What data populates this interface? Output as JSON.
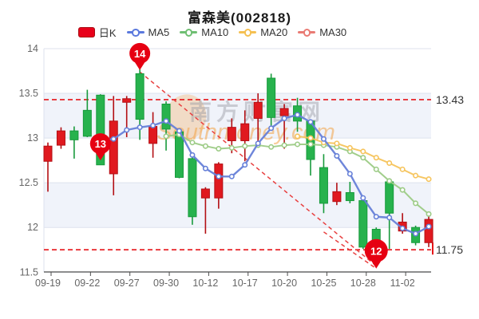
{
  "title": {
    "text": "富森美(002818)"
  },
  "legend": {
    "items": [
      {
        "label": "日K",
        "type": "rect",
        "color": "#e8001a",
        "border": "#a80a12"
      },
      {
        "label": "MA5",
        "type": "line",
        "color": "#5b79dd"
      },
      {
        "label": "MA10",
        "type": "line",
        "color": "#6fbf73"
      },
      {
        "label": "MA20",
        "type": "line",
        "color": "#f5c052"
      },
      {
        "label": "MA30",
        "type": "line",
        "color": "#e97b74"
      }
    ]
  },
  "watermark": {
    "cn": "南方财富网",
    "en": "Southmoney.com"
  },
  "reference_lines": {
    "upper": {
      "value": 13.43,
      "label": "13.43"
    },
    "lower": {
      "value": 11.75,
      "label": "11.75"
    }
  },
  "markers": [
    {
      "label": "14",
      "date": "09-28",
      "tip_value": 13.76
    },
    {
      "label": "13",
      "date": "09-23",
      "tip_value": 12.75
    },
    {
      "label": "12",
      "date": "10-31",
      "tip_value": 11.54
    }
  ],
  "chart_data": {
    "type": "candlestick",
    "title": "富森美(002818)",
    "ylim": [
      11.5,
      14
    ],
    "y_ticks": [
      14,
      13.5,
      13,
      12.5,
      12,
      11.5
    ],
    "x_tick_labels": [
      "09-19",
      "09-22",
      "09-27",
      "09-30",
      "10-12",
      "10-17",
      "10-20",
      "10-25",
      "10-28",
      "11-02"
    ],
    "dates": [
      "09-19",
      "09-20",
      "09-21",
      "09-22",
      "09-23",
      "09-26",
      "09-27",
      "09-28",
      "09-29",
      "09-30",
      "10-10",
      "10-11",
      "10-12",
      "10-13",
      "10-14",
      "10-17",
      "10-18",
      "10-19",
      "10-20",
      "10-21",
      "10-24",
      "10-25",
      "10-26",
      "10-27",
      "10-28",
      "10-31",
      "11-01",
      "11-02",
      "11-03",
      "11-04"
    ],
    "ohlc_order": [
      "open",
      "close",
      "low",
      "high"
    ],
    "ohlc": [
      [
        12.74,
        12.91,
        12.4,
        12.95
      ],
      [
        12.92,
        13.08,
        12.88,
        13.12
      ],
      [
        13.08,
        12.98,
        12.77,
        13.13
      ],
      [
        13.31,
        13.02,
        13.01,
        13.54
      ],
      [
        13.48,
        12.7,
        12.7,
        13.49
      ],
      [
        12.6,
        13.19,
        12.36,
        13.47
      ],
      [
        13.4,
        13.44,
        13.01,
        13.47
      ],
      [
        13.72,
        13.21,
        12.98,
        13.77
      ],
      [
        12.94,
        13.13,
        12.78,
        13.29
      ],
      [
        13.38,
        13.1,
        12.86,
        13.41
      ],
      [
        13.07,
        12.56,
        12.55,
        13.09
      ],
      [
        12.77,
        12.12,
        12.03,
        12.79
      ],
      [
        12.33,
        12.43,
        11.93,
        12.45
      ],
      [
        12.33,
        12.71,
        12.21,
        12.73
      ],
      [
        12.97,
        13.12,
        12.83,
        13.22
      ],
      [
        12.97,
        13.16,
        12.74,
        13.31
      ],
      [
        13.22,
        13.4,
        12.95,
        13.5
      ],
      [
        13.67,
        13.23,
        13.14,
        13.72
      ],
      [
        13.25,
        13.33,
        12.88,
        13.38
      ],
      [
        13.36,
        13.19,
        13.07,
        13.45
      ],
      [
        13.19,
        12.76,
        12.58,
        13.21
      ],
      [
        12.67,
        12.27,
        12.16,
        12.82
      ],
      [
        12.29,
        12.4,
        12.25,
        12.5
      ],
      [
        12.39,
        12.3,
        12.27,
        12.51
      ],
      [
        12.3,
        11.78,
        11.76,
        12.32
      ],
      [
        11.98,
        11.8,
        11.76,
        12.0
      ],
      [
        12.51,
        12.16,
        11.76,
        12.53
      ],
      [
        11.96,
        12.06,
        11.93,
        12.16
      ],
      [
        12.0,
        11.83,
        11.8,
        12.02
      ],
      [
        11.83,
        12.09,
        11.78,
        12.15
      ]
    ],
    "series": [
      {
        "name": "MA5",
        "color": "#6680d8",
        "values": [
          null,
          null,
          null,
          null,
          12.97,
          12.99,
          13.09,
          13.12,
          13.14,
          13.19,
          13.08,
          12.81,
          12.66,
          12.57,
          12.57,
          12.7,
          12.94,
          13.11,
          13.22,
          13.26,
          13.18,
          12.99,
          12.8,
          12.6,
          12.33,
          12.12,
          12.11,
          11.99,
          11.93,
          12.01
        ]
      },
      {
        "name": "MA10",
        "color": "#9ccb85",
        "values": [
          null,
          null,
          null,
          null,
          null,
          null,
          null,
          null,
          null,
          13.02,
          13.04,
          12.95,
          12.91,
          12.88,
          12.89,
          12.91,
          12.92,
          12.9,
          12.92,
          12.93,
          12.93,
          12.92,
          12.9,
          12.85,
          12.78,
          12.65,
          12.52,
          12.42,
          12.27,
          12.15
        ]
      },
      {
        "name": "MA20",
        "color": "#f6c45c",
        "values": [
          null,
          null,
          null,
          null,
          null,
          null,
          null,
          null,
          null,
          null,
          null,
          null,
          null,
          null,
          null,
          null,
          null,
          null,
          null,
          13.02,
          13.0,
          12.95,
          12.94,
          12.89,
          12.85,
          12.78,
          12.72,
          12.65,
          12.58,
          12.54
        ]
      },
      {
        "name": "MA30",
        "color": "#e97b74",
        "values": []
      }
    ],
    "trend_lines": [
      {
        "from": {
          "date": "09-28",
          "value": 13.74
        },
        "to": {
          "date": "10-31",
          "value": 11.57
        }
      },
      {
        "from": {
          "date": "10-25",
          "value": 11.95
        },
        "to": {
          "date": "10-31",
          "value": 11.54
        }
      }
    ],
    "up_color": "#e0191f",
    "down_color": "#27b24d",
    "band_color": "#f0f3fa",
    "grid": true,
    "legend_position": "top"
  }
}
